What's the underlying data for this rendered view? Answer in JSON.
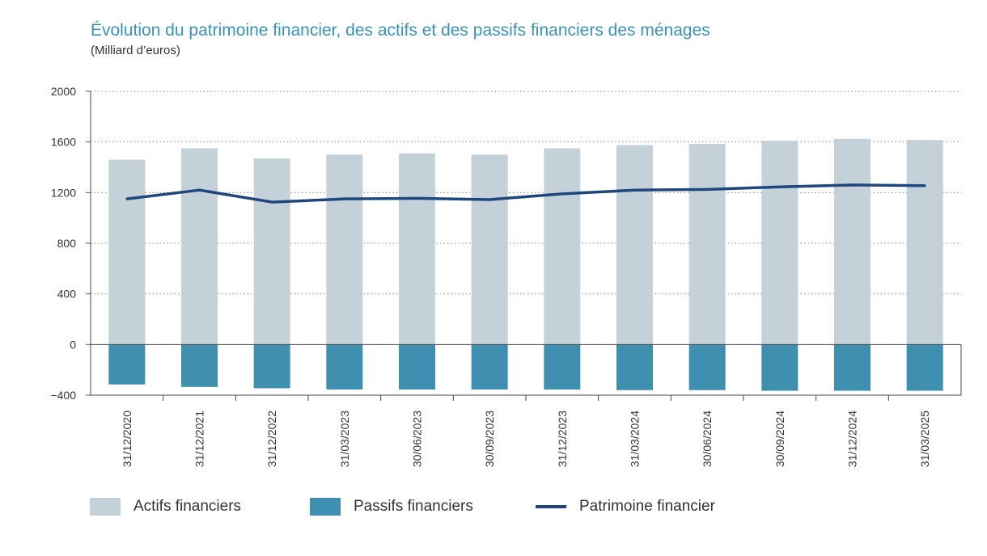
{
  "title": "Évolution du patrimoine financier, des actifs et des passifs financiers des ménages",
  "subtitle": "(Milliard d’euros)",
  "colors": {
    "title": "#3a93b8",
    "actifs": "#c5d1d9",
    "passifs": "#3f8fb0",
    "patrimoine": "#1f477e"
  },
  "legend": {
    "actifs": "Actifs financiers",
    "passifs": "Passifs financiers",
    "patrimoine": "Patrimoine financier"
  },
  "chart_data": {
    "type": "bar",
    "title": "Évolution du patrimoine financier, des actifs et des passifs financiers des ménages",
    "subtitle": "(Milliard d’euros)",
    "categories": [
      "31/12/2020",
      "31/12/2021",
      "31/12/2022",
      "31/03/2023",
      "30/06/2023",
      "30/09/2023",
      "31/12/2023",
      "31/03/2024",
      "30/06/2024",
      "30/09/2024",
      "31/12/2024",
      "31/03/2025"
    ],
    "yticks": [
      "2000",
      "1600",
      "1200",
      "800",
      "400",
      "0",
      "−400"
    ],
    "ylim": [
      -400,
      2000
    ],
    "grid": true,
    "legend_position": "bottom",
    "series": [
      {
        "name": "Actifs financiers",
        "type": "bar",
        "values": [
          1460,
          1550,
          1470,
          1500,
          1510,
          1500,
          1550,
          1575,
          1585,
          1610,
          1625,
          1615
        ]
      },
      {
        "name": "Passifs financiers",
        "type": "bar",
        "values": [
          -315,
          -335,
          -345,
          -355,
          -355,
          -355,
          -355,
          -360,
          -360,
          -365,
          -365,
          -365
        ]
      },
      {
        "name": "Patrimoine financier",
        "type": "line",
        "values": [
          1150,
          1220,
          1125,
          1150,
          1155,
          1145,
          1190,
          1220,
          1225,
          1245,
          1260,
          1255
        ]
      }
    ]
  }
}
